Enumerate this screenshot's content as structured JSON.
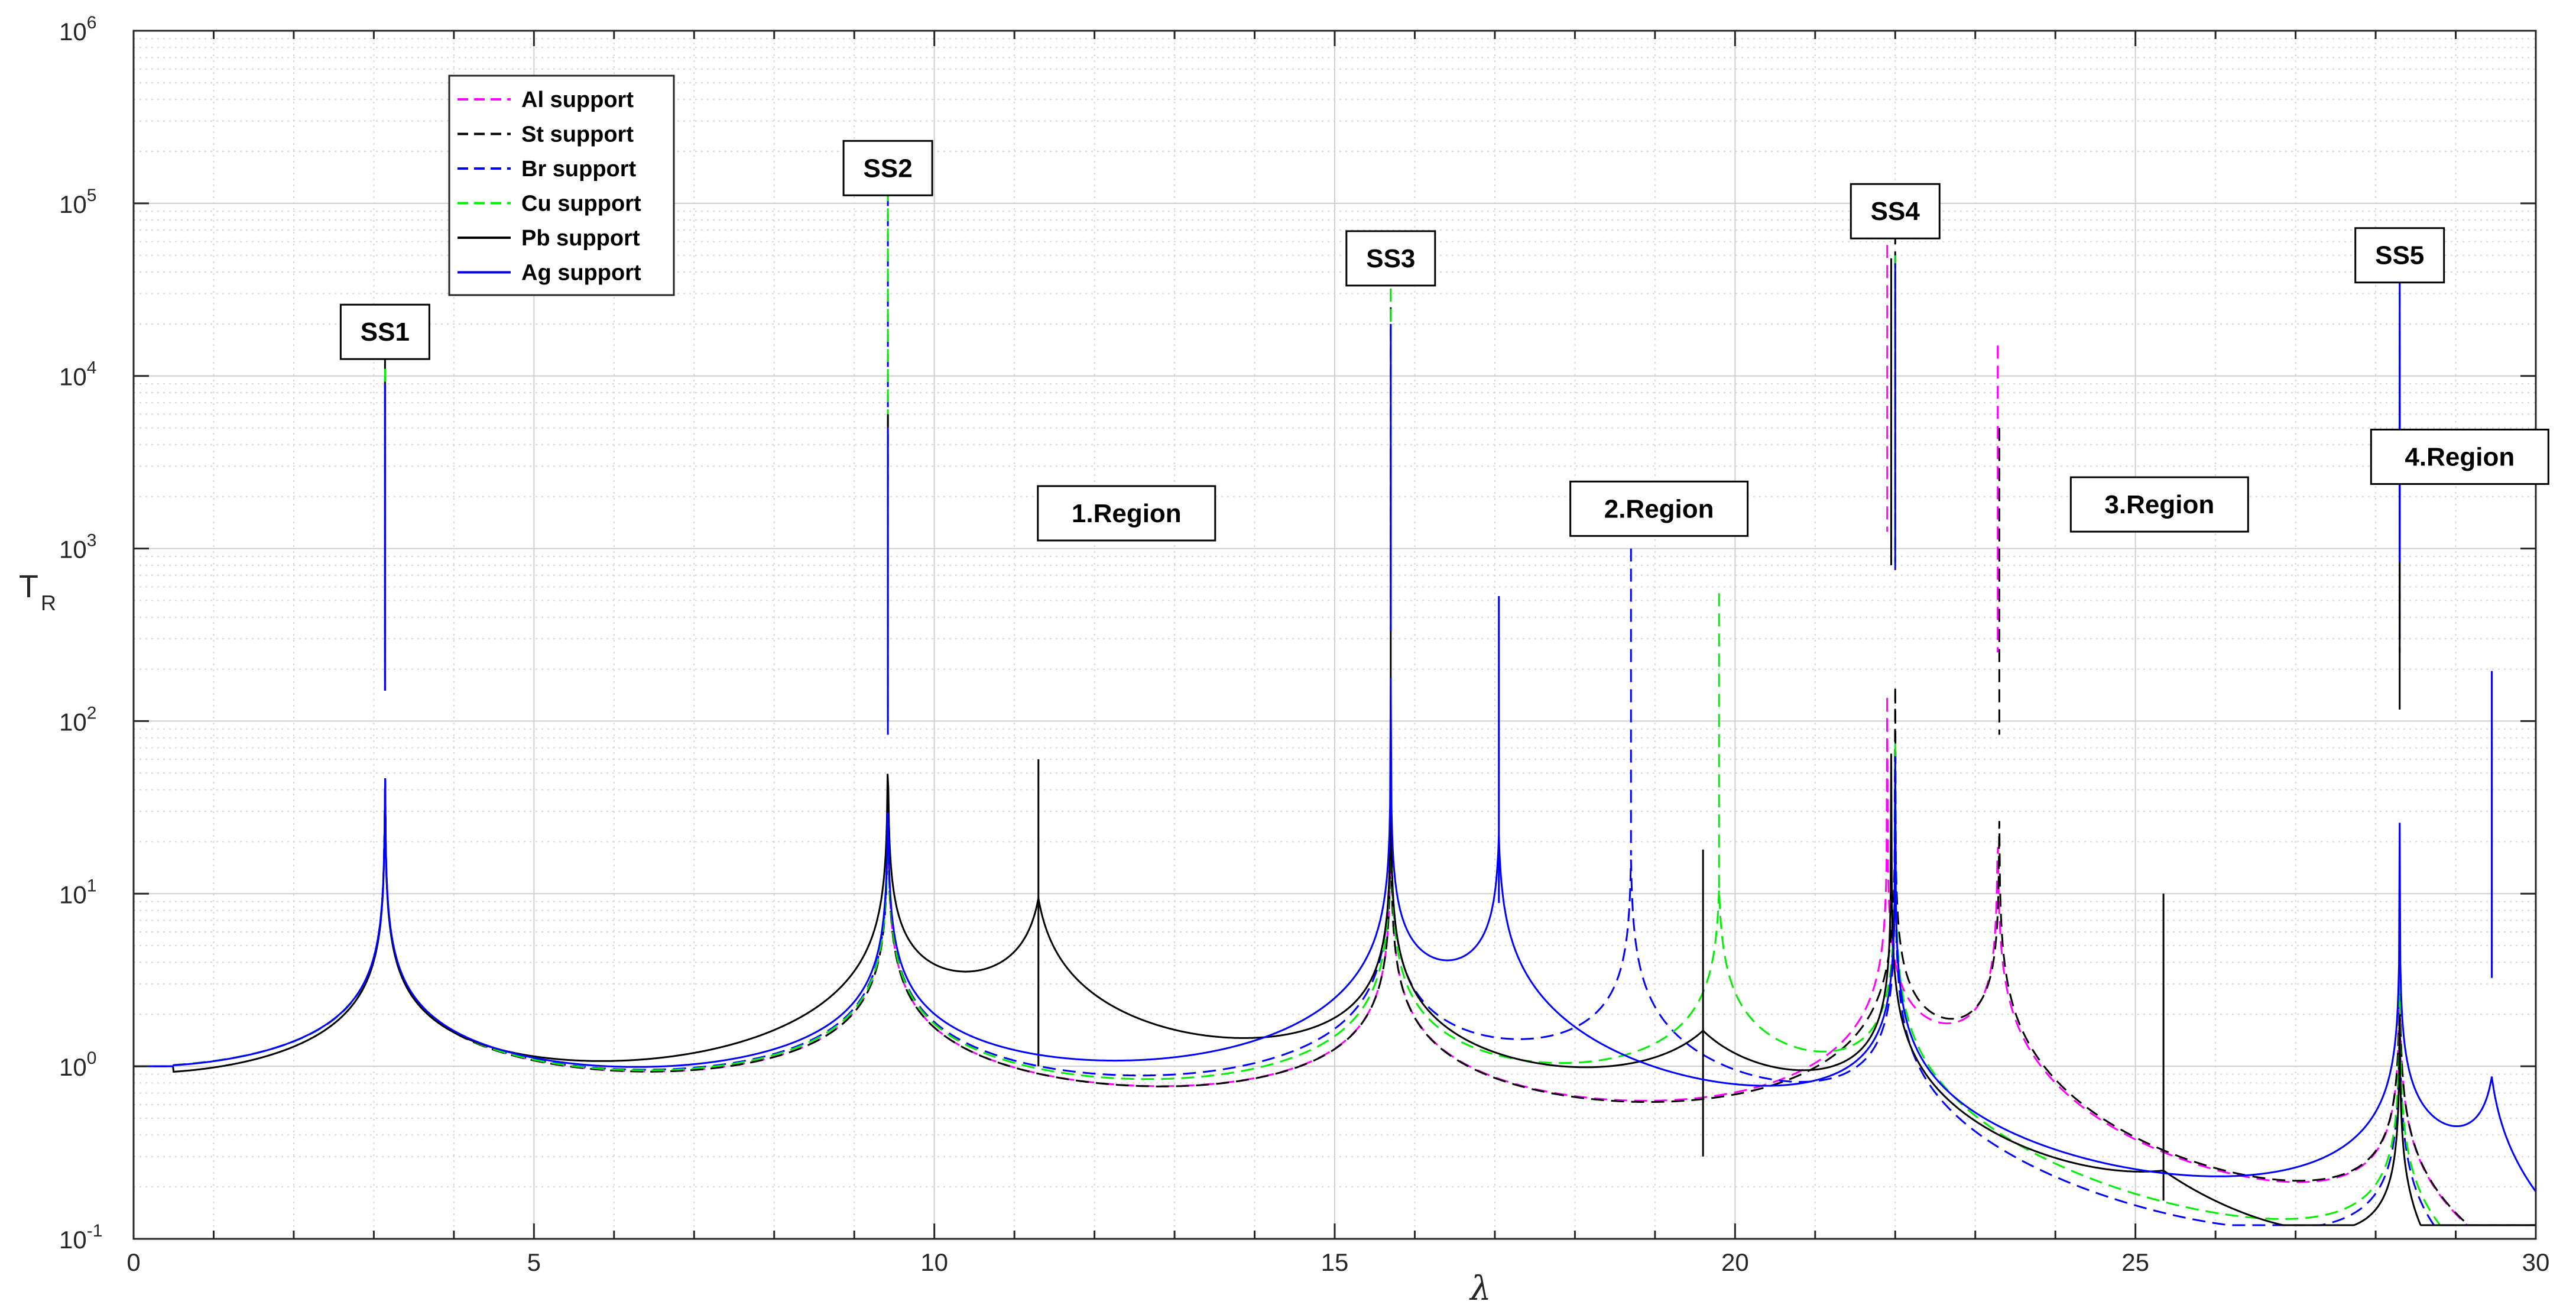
{
  "chart_data": {
    "type": "line",
    "title": "",
    "xlabel": "λ",
    "ylabel": "T",
    "ylabel_subscript": "R",
    "xlim": [
      0,
      30
    ],
    "ylim_exponents": [
      -1,
      6
    ],
    "yscale": "log",
    "grid": true,
    "minor_grid": true,
    "x_tick_labels": [
      "0",
      "5",
      "10",
      "15",
      "20",
      "25",
      "30"
    ],
    "y_tick_labels": [
      {
        "base": "10",
        "exp": "-1"
      },
      {
        "base": "10",
        "exp": "0"
      },
      {
        "base": "10",
        "exp": "1"
      },
      {
        "base": "10",
        "exp": "2"
      },
      {
        "base": "10",
        "exp": "3"
      },
      {
        "base": "10",
        "exp": "4"
      },
      {
        "base": "10",
        "exp": "5"
      },
      {
        "base": "10",
        "exp": "6"
      }
    ],
    "legend_position": "top-left",
    "series": [
      {
        "name": "Al support",
        "color": "#ff00ff",
        "dash": "dashed",
        "resonances": [
          3.14,
          9.42,
          15.7,
          21.9,
          23.28,
          28.3
        ],
        "peaks": [
          10000,
          150000,
          42000,
          75000,
          15000,
          20000
        ]
      },
      {
        "name": "St support",
        "color": "#000000",
        "dash": "dashed",
        "resonances": [
          3.14,
          9.42,
          15.7,
          22.0,
          23.3,
          28.3
        ],
        "peaks": [
          13000,
          6000,
          25000,
          90000,
          5000,
          18000
        ]
      },
      {
        "name": "Br support",
        "color": "#0000ff",
        "dash": "dashed",
        "resonances": [
          3.14,
          9.42,
          15.7,
          18.7,
          22.0,
          28.3
        ],
        "peaks": [
          9000,
          150000,
          20000,
          1000,
          50000,
          15000
        ]
      },
      {
        "name": "Cu support",
        "color": "#00ee00",
        "dash": "dashed",
        "resonances": [
          3.14,
          9.42,
          15.7,
          19.8,
          22.0,
          28.3
        ],
        "peaks": [
          11000,
          160000,
          32000,
          550,
          50000,
          40000
        ]
      },
      {
        "name": "Pb support",
        "color": "#000000",
        "dash": "solid",
        "resonances": [
          3.14,
          9.42,
          11.3,
          15.7,
          19.6,
          21.95,
          25.35,
          28.3
        ],
        "peaks": [
          9000,
          6000,
          60,
          3800,
          18,
          48000,
          10,
          7000
        ]
      },
      {
        "name": "Ag support",
        "color": "#0000ff",
        "dash": "solid",
        "resonances": [
          3.14,
          9.42,
          15.7,
          17.05,
          22.0,
          28.3,
          29.45
        ],
        "peaks": [
          9000,
          5000,
          20000,
          530,
          45000,
          50000,
          195
        ]
      }
    ],
    "annotations": [
      {
        "label": "SS1",
        "x": 3.14,
        "y": 18000
      },
      {
        "label": "SS2",
        "x": 9.42,
        "y": 160000
      },
      {
        "label": "SS3",
        "x": 15.7,
        "y": 48000
      },
      {
        "label": "SS4",
        "x": 22.0,
        "y": 90000
      },
      {
        "label": "SS5",
        "x": 28.3,
        "y": 50000
      },
      {
        "label": "1.Region",
        "x": 12.4,
        "y": 1600
      },
      {
        "label": "2.Region",
        "x": 19.05,
        "y": 1700
      },
      {
        "label": "3.Region",
        "x": 25.3,
        "y": 1800
      },
      {
        "label": "4.Region",
        "x": 29.05,
        "y": 3400
      }
    ]
  }
}
